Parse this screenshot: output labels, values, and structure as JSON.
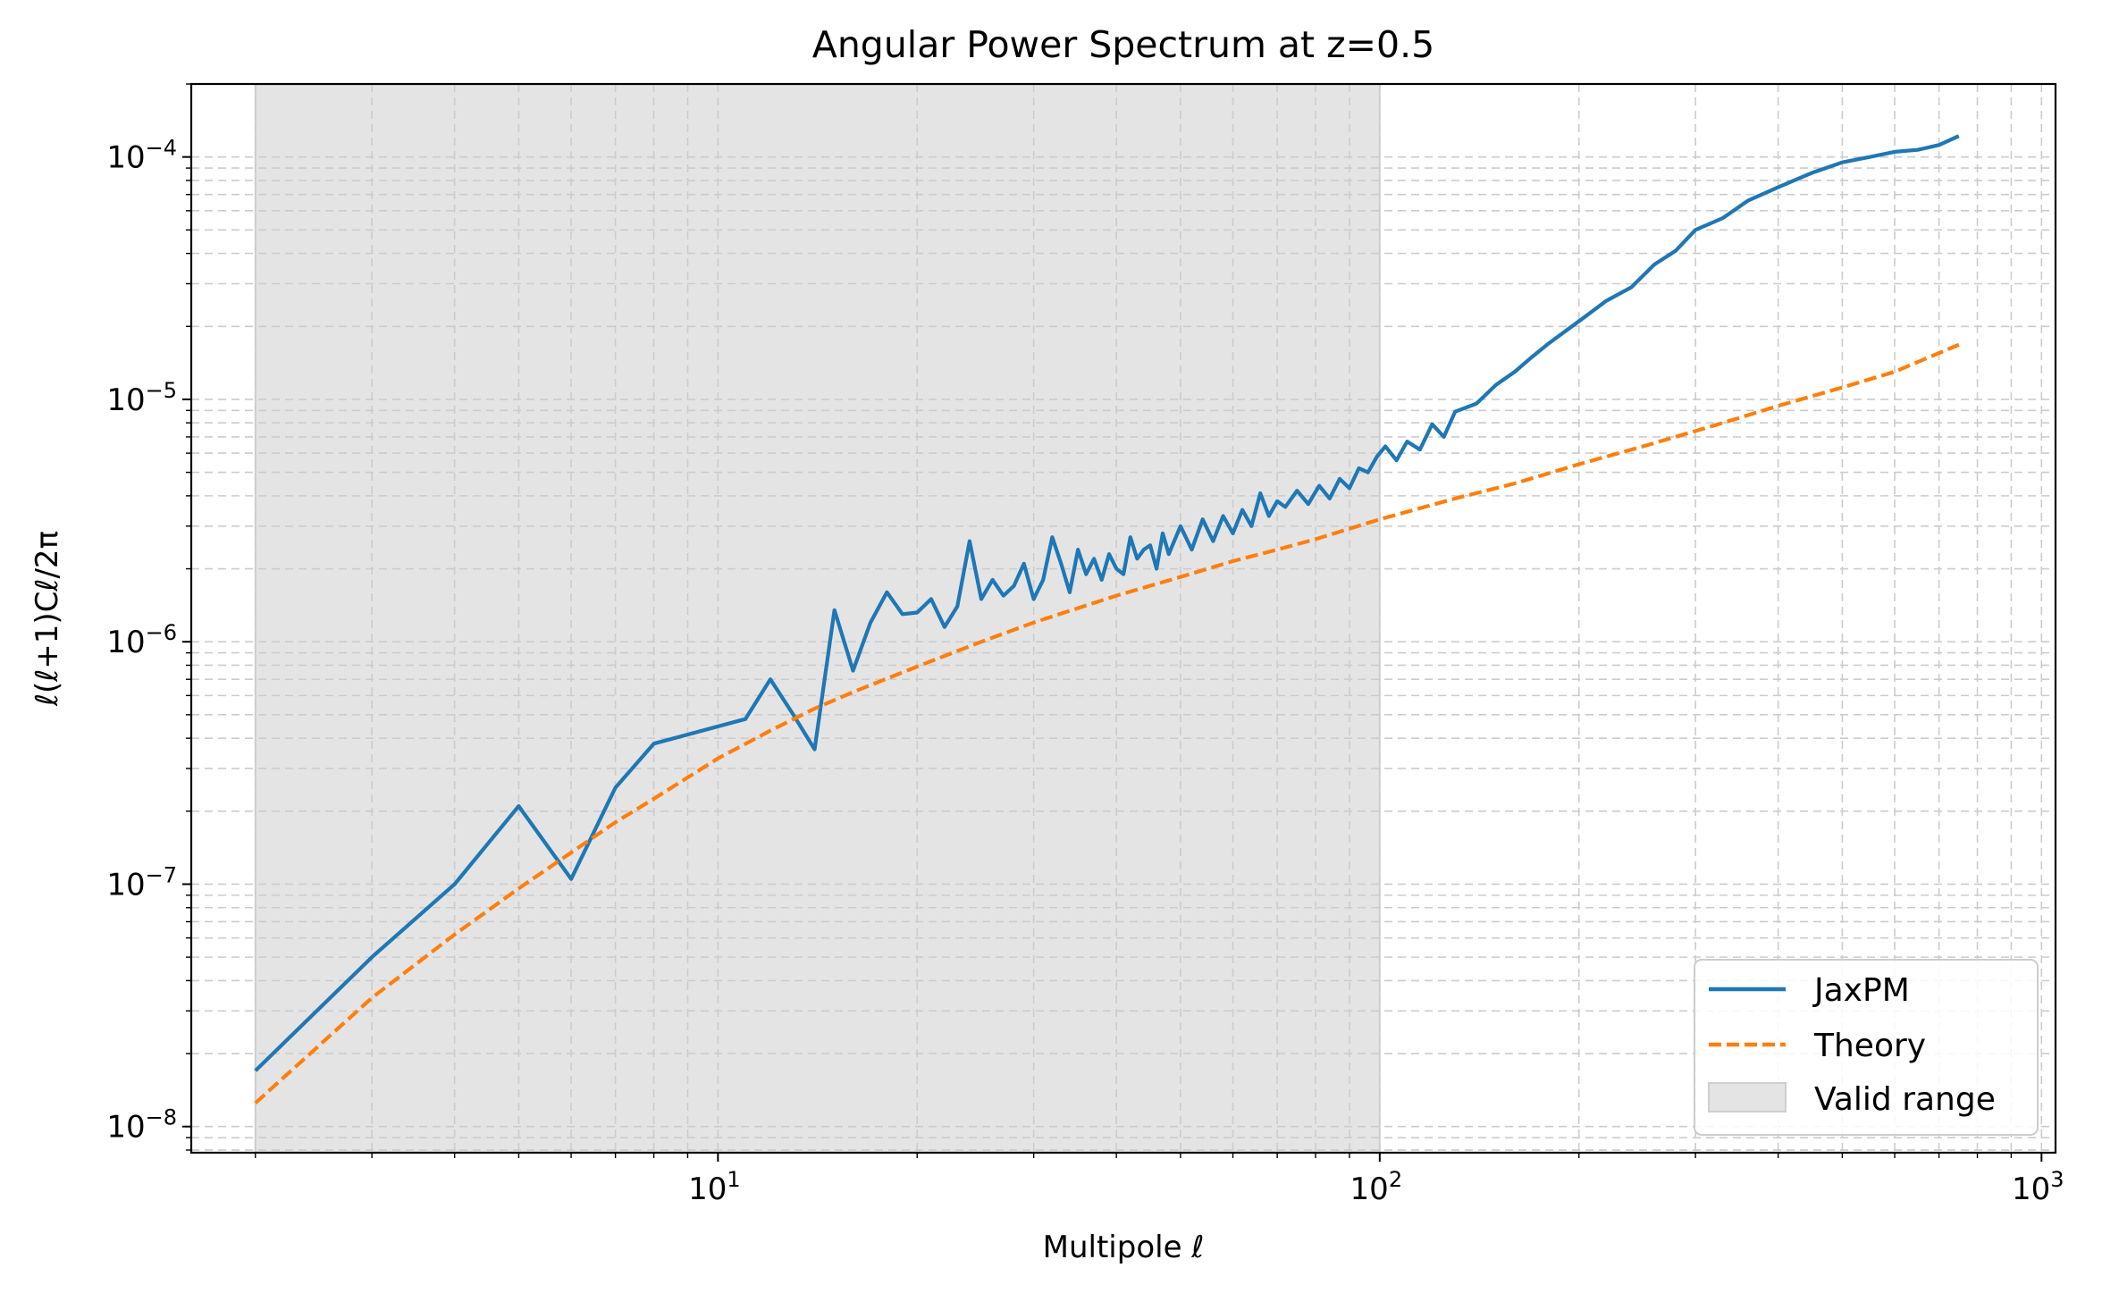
{
  "chart_data": {
    "type": "line",
    "title": "Angular Power Spectrum at z=0.5",
    "xlabel": "Multipole ℓ",
    "ylabel": "ℓ(ℓ+1)Cℓ/2π",
    "xscale": "log",
    "yscale": "log",
    "xlim": [
      1.6,
      1050
    ],
    "ylim": [
      7.8e-09,
      0.0002
    ],
    "grid": true,
    "legend_position": "lower-right",
    "x_ticks": [
      {
        "value": 10,
        "label": "10",
        "exp": "1"
      },
      {
        "value": 100,
        "label": "10",
        "exp": "2"
      },
      {
        "value": 1000,
        "label": "10",
        "exp": "3"
      }
    ],
    "y_ticks": [
      {
        "value": 1e-08,
        "label": "10",
        "exp": "−8"
      },
      {
        "value": 1e-07,
        "label": "10",
        "exp": "−7"
      },
      {
        "value": 1e-06,
        "label": "10",
        "exp": "−6"
      },
      {
        "value": 1e-05,
        "label": "10",
        "exp": "−5"
      },
      {
        "value": 0.0001,
        "label": "10",
        "exp": "−4"
      }
    ],
    "shaded_region": {
      "name": "Valid range",
      "x": [
        2,
        100
      ],
      "color": "#e4e4e4"
    },
    "series": [
      {
        "name": "JaxPM",
        "color": "#1f77b4",
        "style": "solid",
        "x": [
          2,
          3,
          4,
          5,
          6,
          7,
          8,
          11,
          12,
          13,
          14,
          15,
          16,
          17,
          18,
          19,
          20,
          21,
          22,
          23,
          24,
          25,
          26,
          27,
          28,
          29,
          30,
          31,
          32,
          33,
          34,
          35,
          36,
          37,
          38,
          39,
          40,
          41,
          42,
          43,
          44,
          45,
          46,
          47,
          48,
          50,
          52,
          54,
          56,
          58,
          60,
          62,
          64,
          66,
          68,
          70,
          72,
          75,
          78,
          81,
          84,
          87,
          90,
          93,
          96,
          99,
          102,
          106,
          110,
          115,
          120,
          125,
          130,
          140,
          150,
          160,
          170,
          180,
          200,
          220,
          240,
          260,
          280,
          300,
          330,
          360,
          400,
          450,
          500,
          550,
          600,
          650,
          700,
          750
        ],
        "y": [
          1.7e-08,
          5e-08,
          1e-07,
          2.1e-07,
          1.05e-07,
          2.5e-07,
          3.8e-07,
          4.8e-07,
          7e-07,
          5e-07,
          3.6e-07,
          1.35e-06,
          7.6e-07,
          1.2e-06,
          1.6e-06,
          1.3e-06,
          1.32e-06,
          1.5e-06,
          1.15e-06,
          1.4e-06,
          2.6e-06,
          1.5e-06,
          1.8e-06,
          1.55e-06,
          1.7e-06,
          2.1e-06,
          1.5e-06,
          1.8e-06,
          2.7e-06,
          2.1e-06,
          1.6e-06,
          2.4e-06,
          1.9e-06,
          2.2e-06,
          1.8e-06,
          2.3e-06,
          2e-06,
          1.9e-06,
          2.7e-06,
          2.2e-06,
          2.4e-06,
          2.5e-06,
          2e-06,
          2.8e-06,
          2.3e-06,
          3e-06,
          2.4e-06,
          3.2e-06,
          2.6e-06,
          3.3e-06,
          2.8e-06,
          3.5e-06,
          3e-06,
          4.1e-06,
          3.3e-06,
          3.8e-06,
          3.6e-06,
          4.2e-06,
          3.7e-06,
          4.4e-06,
          3.9e-06,
          4.7e-06,
          4.3e-06,
          5.2e-06,
          5e-06,
          5.8e-06,
          6.4e-06,
          5.6e-06,
          6.7e-06,
          6.2e-06,
          7.9e-06,
          7e-06,
          8.9e-06,
          9.6e-06,
          1.15e-05,
          1.3e-05,
          1.5e-05,
          1.7e-05,
          2.1e-05,
          2.55e-05,
          2.9e-05,
          3.6e-05,
          4.1e-05,
          5e-05,
          5.6e-05,
          6.6e-05,
          7.5e-05,
          8.6e-05,
          9.5e-05,
          0.0001,
          0.000105,
          0.000107,
          0.000112,
          0.000122
        ]
      },
      {
        "name": "Theory",
        "color": "#ff7f0e",
        "style": "dashed",
        "x": [
          2,
          3,
          4,
          5,
          6,
          7,
          8,
          10,
          12,
          14,
          16,
          20,
          25,
          30,
          40,
          50,
          60,
          70,
          80,
          100,
          130,
          160,
          200,
          250,
          300,
          350,
          400,
          500,
          600,
          750
        ],
        "y": [
          1.25e-08,
          3.4e-08,
          6.2e-08,
          9.6e-08,
          1.35e-07,
          1.8e-07,
          2.25e-07,
          3.3e-07,
          4.3e-07,
          5.3e-07,
          6.2e-07,
          7.9e-07,
          1e-06,
          1.2e-06,
          1.55e-06,
          1.85e-06,
          2.15e-06,
          2.4e-06,
          2.65e-06,
          3.2e-06,
          3.9e-06,
          4.5e-06,
          5.4e-06,
          6.4e-06,
          7.4e-06,
          8.4e-06,
          9.4e-06,
          1.12e-05,
          1.3e-05,
          1.68e-05
        ]
      }
    ]
  }
}
